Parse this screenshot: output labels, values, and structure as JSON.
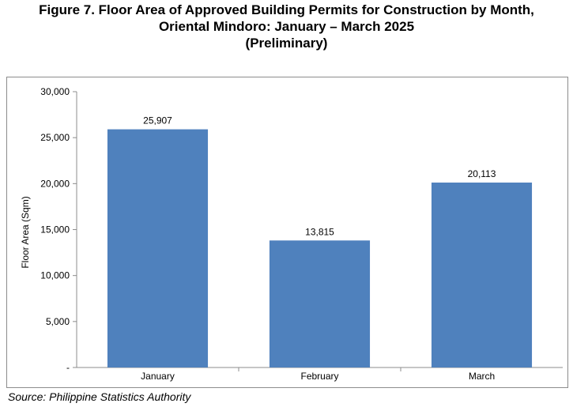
{
  "title": {
    "line1": "Figure 7.  Floor Area of Approved Building Permits for Construction by Month,",
    "line2": "Oriental Mindoro:   January – March 2025",
    "line3": "(Preliminary)"
  },
  "source": "Source: Philippine Statistics Authority",
  "chart_data": {
    "type": "bar",
    "categories": [
      "January",
      "February",
      "March"
    ],
    "values": [
      25907,
      13815,
      20113
    ],
    "value_labels": [
      "25,907",
      "13,815",
      "20,113"
    ],
    "ylabel": "Floor Area (Sqm)",
    "xlabel": "",
    "ylim": [
      0,
      30000
    ],
    "yticks": [
      0,
      5000,
      10000,
      15000,
      20000,
      25000,
      30000
    ],
    "ytick_labels": [
      "-",
      "5,000",
      "10,000",
      "15,000",
      "20,000",
      "25,000",
      "30,000"
    ],
    "grid": false,
    "legend": "none",
    "bar_color": "#4f81bd"
  }
}
